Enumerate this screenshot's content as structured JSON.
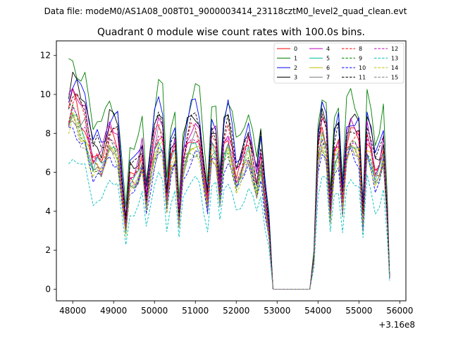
{
  "suptitle": "Data file: modeM0/AS1A08_008T01_9000003414_23118cztM0_level2_quad_clean.evt",
  "chart_data": {
    "type": "line",
    "title": "Quadrant 0 module wise count rates with 100.0s bins.",
    "xlabel": "",
    "ylabel": "",
    "x_offset_label": "+3.16e8",
    "xlim": [
      47600,
      56150
    ],
    "ylim": [
      -0.6,
      12.75
    ],
    "x_ticks": [
      48000,
      49000,
      50000,
      51000,
      52000,
      53000,
      54000,
      55000,
      56000
    ],
    "y_ticks": [
      0,
      2,
      4,
      6,
      8,
      10,
      12
    ],
    "x": [
      47900,
      48000,
      48100,
      48200,
      48300,
      48400,
      48500,
      48600,
      48700,
      48800,
      48900,
      49000,
      49100,
      49200,
      49300,
      49400,
      49500,
      49600,
      49700,
      49800,
      49900,
      50000,
      50100,
      50200,
      50300,
      50400,
      50500,
      50600,
      50700,
      50800,
      50900,
      51000,
      51100,
      51200,
      51300,
      51400,
      51500,
      51600,
      51700,
      51800,
      51900,
      52000,
      52100,
      52200,
      52300,
      52400,
      52500,
      52600,
      52700,
      52800,
      52900,
      53000,
      53100,
      53200,
      53300,
      53400,
      53500,
      53600,
      53700,
      53800,
      53900,
      54000,
      54100,
      54200,
      54300,
      54400,
      54500,
      54600,
      54700,
      54800,
      54900,
      55000,
      55100,
      55200,
      55300,
      55400,
      55500,
      55600,
      55700,
      55750
    ],
    "base": [
      1.0,
      1.07,
      1.04,
      0.98,
      0.96,
      0.84,
      0.73,
      0.76,
      0.73,
      0.79,
      0.88,
      0.86,
      0.84,
      0.58,
      0.36,
      0.64,
      0.64,
      0.68,
      0.76,
      0.5,
      0.68,
      0.84,
      0.92,
      0.88,
      0.5,
      0.74,
      0.8,
      0.4,
      0.72,
      0.82,
      0.88,
      0.9,
      0.86,
      0.66,
      0.5,
      0.84,
      0.82,
      0.54,
      0.82,
      0.88,
      0.78,
      0.64,
      0.68,
      0.76,
      0.82,
      0.72,
      0.6,
      0.76,
      0.52,
      0.34,
      0.0,
      0.0,
      0.0,
      0.0,
      0.0,
      0.0,
      0.0,
      0.0,
      0.0,
      0.0,
      0.17,
      0.78,
      0.92,
      0.86,
      0.44,
      0.78,
      0.84,
      0.48,
      0.82,
      0.88,
      0.86,
      0.84,
      0.4,
      0.88,
      0.8,
      0.66,
      0.7,
      0.8,
      0.38,
      0.07
    ],
    "series": [
      {
        "name": "0",
        "color": "#ff0000",
        "dash": "solid",
        "scale": 9.0
      },
      {
        "name": "1",
        "color": "#008000",
        "dash": "solid",
        "scale": 11.3
      },
      {
        "name": "2",
        "color": "#0000ff",
        "dash": "solid",
        "scale": 10.3
      },
      {
        "name": "3",
        "color": "#000000",
        "dash": "solid",
        "scale": 10.0
      },
      {
        "name": "4",
        "color": "#bf00bf",
        "dash": "solid",
        "scale": 9.5
      },
      {
        "name": "5",
        "color": "#00bfa0",
        "dash": "solid",
        "scale": 8.4
      },
      {
        "name": "6",
        "color": "#bfbf00",
        "dash": "solid",
        "scale": 8.3
      },
      {
        "name": "7",
        "color": "#808080",
        "dash": "solid",
        "scale": 8.5
      },
      {
        "name": "8",
        "color": "#ff0000",
        "dash": "dashed",
        "scale": 9.1
      },
      {
        "name": "9",
        "color": "#008000",
        "dash": "dashed",
        "scale": 8.2
      },
      {
        "name": "10",
        "color": "#0000ff",
        "dash": "dashed",
        "scale": 7.8
      },
      {
        "name": "11",
        "color": "#000000",
        "dash": "dashed",
        "scale": 9.7
      },
      {
        "name": "12",
        "color": "#bf00bf",
        "dash": "dashed",
        "scale": 8.6
      },
      {
        "name": "13",
        "color": "#00bfbf",
        "dash": "dashed",
        "scale": 6.3
      },
      {
        "name": "14",
        "color": "#bfbf00",
        "dash": "dashed",
        "scale": 8.1
      },
      {
        "name": "15",
        "color": "#808080",
        "dash": "dashed",
        "scale": 8.0
      }
    ],
    "legend_position": "top-right",
    "legend_columns": 4
  }
}
